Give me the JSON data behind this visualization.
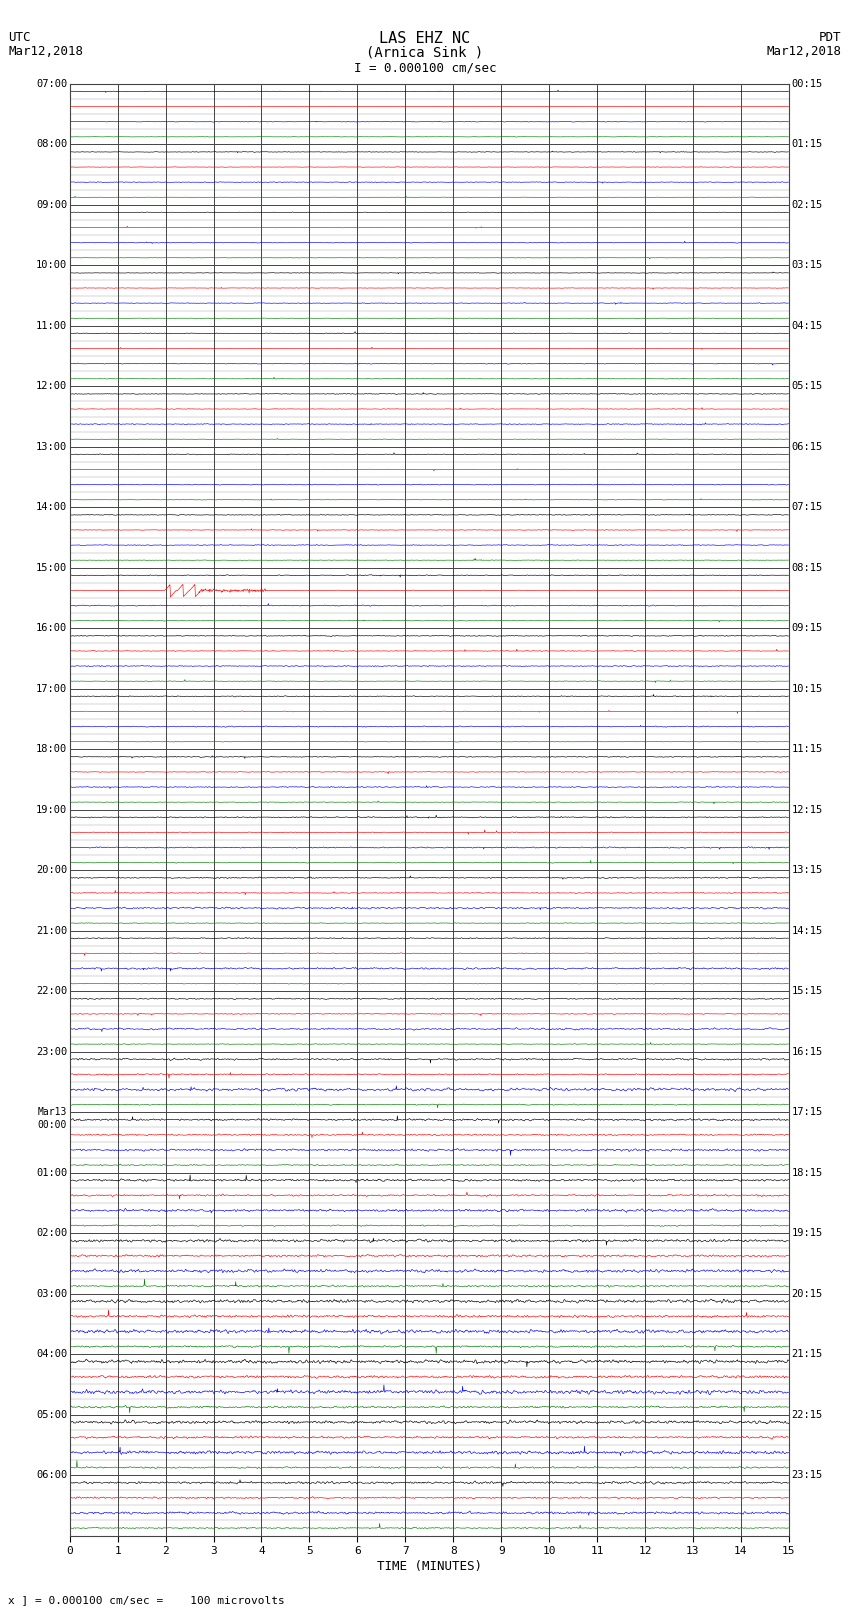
{
  "title_line1": "LAS EHZ NC",
  "title_line2": "(Arnica Sink )",
  "scale_label": "I = 0.000100 cm/sec",
  "utc_label": "UTC",
  "utc_date": "Mar12,2018",
  "pdt_label": "PDT",
  "pdt_date": "Mar12,2018",
  "footer_label": "x ] = 0.000100 cm/sec =    100 microvolts",
  "xlabel": "TIME (MINUTES)",
  "left_times_utc": [
    "07:00",
    "08:00",
    "09:00",
    "10:00",
    "11:00",
    "12:00",
    "13:00",
    "14:00",
    "15:00",
    "16:00",
    "17:00",
    "18:00",
    "19:00",
    "20:00",
    "21:00",
    "22:00",
    "23:00",
    "Mar13\n00:00",
    "01:00",
    "02:00",
    "03:00",
    "04:00",
    "05:00",
    "06:00"
  ],
  "right_times_pdt": [
    "00:15",
    "01:15",
    "02:15",
    "03:15",
    "04:15",
    "05:15",
    "06:15",
    "07:15",
    "08:15",
    "09:15",
    "10:15",
    "11:15",
    "12:15",
    "13:15",
    "14:15",
    "15:15",
    "16:15",
    "17:15",
    "18:15",
    "19:15",
    "20:15",
    "21:15",
    "22:15",
    "23:15"
  ],
  "num_rows": 24,
  "minutes_per_row": 15,
  "bg_color": "#ffffff",
  "trace_colors": [
    "black",
    "red",
    "blue",
    "green"
  ],
  "traces_per_row": 4,
  "spike_row": 8,
  "spike_minute": 2.1,
  "noise_amplitudes": [
    0.012,
    0.012,
    0.012,
    0.012,
    0.015,
    0.015,
    0.015,
    0.015,
    0.018,
    0.018,
    0.018,
    0.018,
    0.022,
    0.022,
    0.022,
    0.022,
    0.035,
    0.04,
    0.045,
    0.055,
    0.065,
    0.07,
    0.06,
    0.045
  ]
}
